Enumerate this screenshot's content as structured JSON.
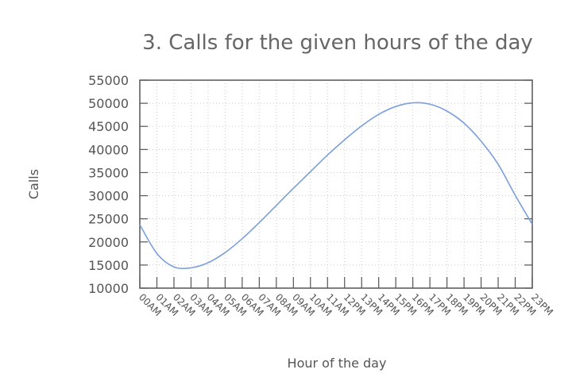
{
  "chart_data": {
    "type": "line",
    "title": "3. Calls for the given hours of the day",
    "xlabel": "Hour of the day",
    "ylabel": "Calls",
    "ylim": [
      10000,
      55000
    ],
    "yticks": [
      10000,
      15000,
      20000,
      25000,
      30000,
      35000,
      40000,
      45000,
      50000,
      55000
    ],
    "categories": [
      "00AM",
      "01AM",
      "02AM",
      "03AM",
      "04AM",
      "05AM",
      "06AM",
      "07AM",
      "08AM",
      "09AM",
      "10AM",
      "11AM",
      "12PM",
      "13PM",
      "14PM",
      "15PM",
      "16PM",
      "17PM",
      "18PM",
      "19PM",
      "20PM",
      "21PM",
      "22PM",
      "23PM"
    ],
    "grid": true,
    "line_color": "#7a9fdc",
    "series": [
      {
        "values": [
          23700,
          17500,
          14600,
          14400,
          15500,
          17700,
          20700,
          24200,
          27900,
          31600,
          35200,
          38800,
          42100,
          45100,
          47600,
          49300,
          50100,
          49800,
          48300,
          45700,
          41800,
          36800,
          30100,
          23800
        ]
      }
    ]
  }
}
